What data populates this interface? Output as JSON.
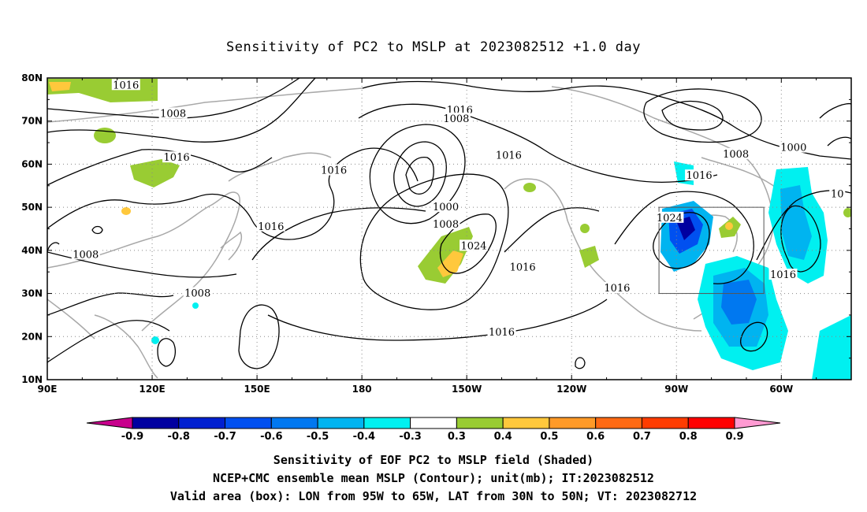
{
  "title": "Sensitivity of PC2 to MSLP at 2023082512 +1.0 day",
  "axes": {
    "lat_labels": [
      "80N",
      "70N",
      "60N",
      "50N",
      "40N",
      "30N",
      "20N",
      "10N"
    ],
    "lon_labels": [
      "90E",
      "120E",
      "150E",
      "180",
      "150W",
      "120W",
      "90W",
      "60W"
    ],
    "lon_values": [
      90,
      120,
      150,
      180,
      210,
      240,
      270,
      300
    ],
    "lat_values": [
      80,
      70,
      60,
      50,
      40,
      30,
      20,
      10
    ]
  },
  "contour_labels": [
    {
      "text": "1016",
      "lon": 112.5,
      "lat": 78.3
    },
    {
      "text": "1008",
      "lon": 126.0,
      "lat": 71.7
    },
    {
      "text": "1016",
      "lon": 208.0,
      "lat": 72.5
    },
    {
      "text": "1008",
      "lon": 207.0,
      "lat": 70.5
    },
    {
      "text": "1016",
      "lon": 127.0,
      "lat": 61.5
    },
    {
      "text": "1016",
      "lon": 222.0,
      "lat": 62.0
    },
    {
      "text": "1016",
      "lon": 172.0,
      "lat": 58.5
    },
    {
      "text": "1008",
      "lon": 287.0,
      "lat": 62.3
    },
    {
      "text": "1000",
      "lon": 303.5,
      "lat": 63.8
    },
    {
      "text": "1016",
      "lon": 276.5,
      "lat": 57.3
    },
    {
      "text": "10",
      "lon": 316.0,
      "lat": 53.0
    },
    {
      "text": "1000",
      "lon": 204.0,
      "lat": 50.0
    },
    {
      "text": "1008",
      "lon": 204.0,
      "lat": 46.0
    },
    {
      "text": "1016",
      "lon": 154.0,
      "lat": 45.5
    },
    {
      "text": "1024",
      "lon": 268.0,
      "lat": 47.5
    },
    {
      "text": "1024",
      "lon": 212.0,
      "lat": 41.0
    },
    {
      "text": "1008",
      "lon": 101.0,
      "lat": 39.0
    },
    {
      "text": "1016",
      "lon": 226.0,
      "lat": 36.0
    },
    {
      "text": "1016",
      "lon": 300.5,
      "lat": 34.3
    },
    {
      "text": "1016",
      "lon": 253.0,
      "lat": 31.2
    },
    {
      "text": "1008",
      "lon": 133.0,
      "lat": 30.0
    },
    {
      "text": "1016",
      "lon": 220.0,
      "lat": 21.0
    }
  ],
  "valid_box": {
    "lon_min": 265,
    "lon_max": 295,
    "lat_min": 30,
    "lat_max": 50
  },
  "colorbar": {
    "labels": [
      "-0.9",
      "-0.8",
      "-0.7",
      "-0.6",
      "-0.5",
      "-0.4",
      "-0.3",
      "0.3",
      "0.4",
      "0.5",
      "0.6",
      "0.7",
      "0.8",
      "0.9"
    ],
    "colors": [
      "#c8008c",
      "#0000a0",
      "#0020d0",
      "#0050f0",
      "#0078f0",
      "#00b4f0",
      "#00f0f0",
      "#ffffff",
      "#99cc33",
      "#ffc83c",
      "#ff9a28",
      "#ff6a14",
      "#ff3c00",
      "#ff0000",
      "#ff9ad2"
    ]
  },
  "captions": {
    "line1": "Sensitivity of EOF PC2 to MSLP field (Shaded)",
    "line2": "NCEP+CMC ensemble mean MSLP (Contour); unit(mb); IT:2023082512",
    "line3": "Valid area (box): LON from 95W to 65W, LAT from 30N to 50N; VT: 2023082712"
  }
}
